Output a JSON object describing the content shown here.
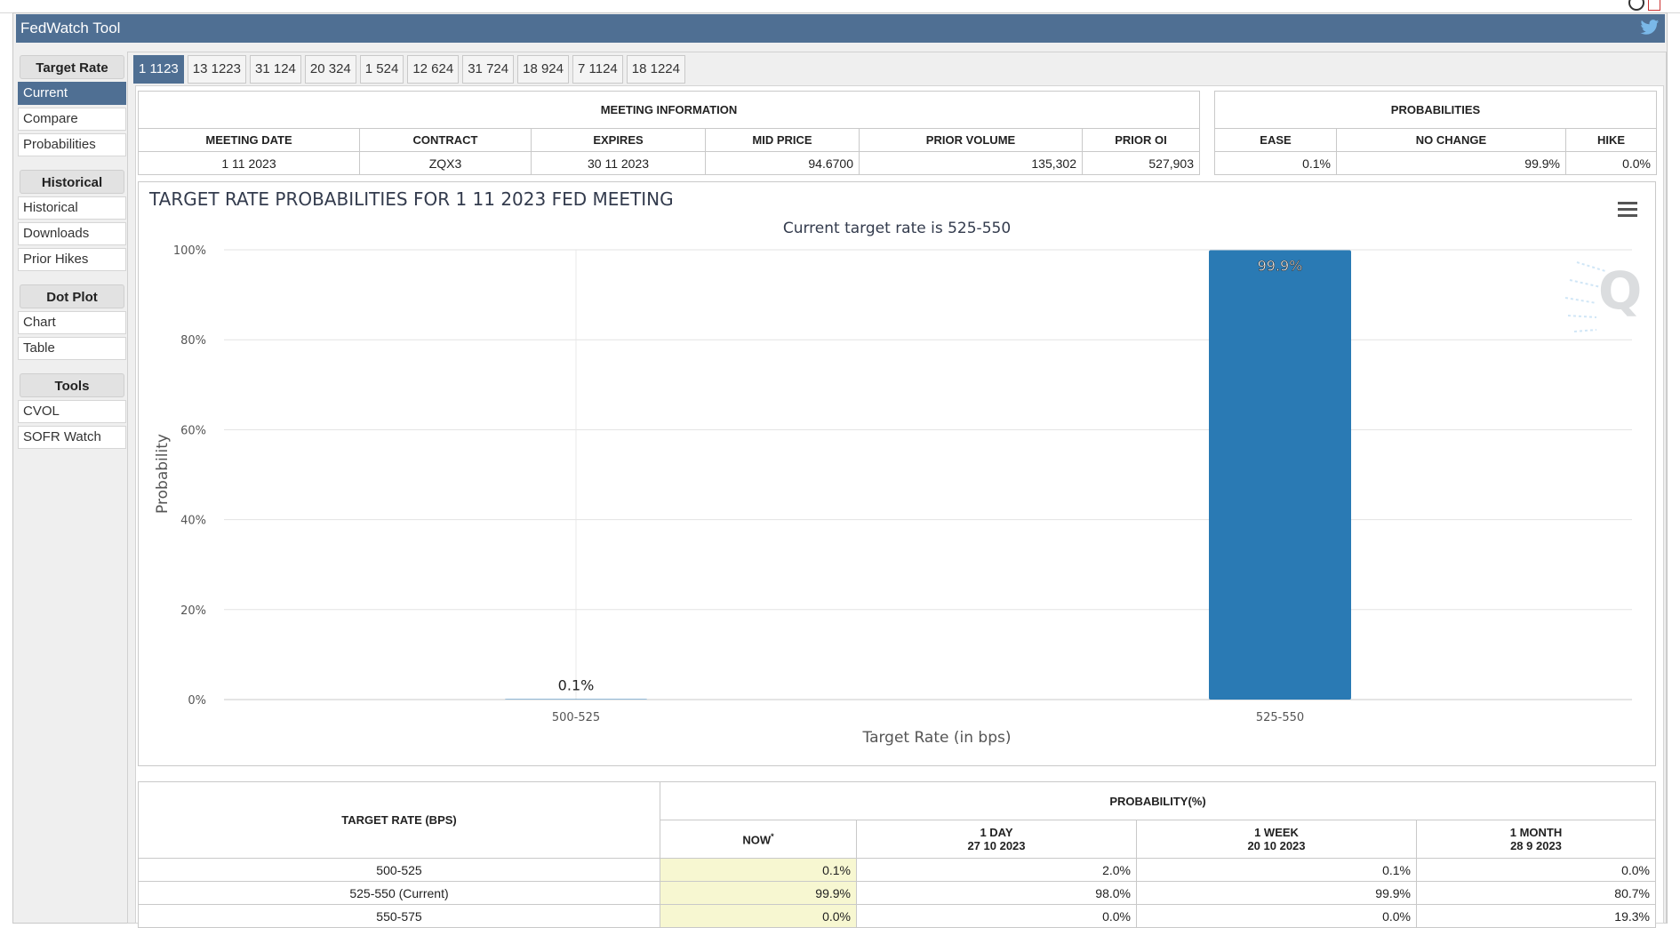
{
  "app": {
    "title": "FedWatch Tool"
  },
  "sidebar": {
    "groups": [
      {
        "heading": "Target Rate",
        "items": [
          "Current",
          "Compare",
          "Probabilities"
        ]
      },
      {
        "heading": "Historical",
        "items": [
          "Historical",
          "Downloads",
          "Prior Hikes"
        ]
      },
      {
        "heading": "Dot Plot",
        "items": [
          "Chart",
          "Table"
        ]
      },
      {
        "heading": "Tools",
        "items": [
          "CVOL",
          "SOFR Watch"
        ]
      }
    ],
    "active_item": "Current"
  },
  "tabs": [
    "1 1123",
    "13 1223",
    "31 124",
    "20 324",
    "1 524",
    "12 624",
    "31 724",
    "18 924",
    "7 1124",
    "18 1224"
  ],
  "active_tab": 0,
  "meeting_info": {
    "title": "MEETING INFORMATION",
    "headers": [
      "MEETING DATE",
      "CONTRACT",
      "EXPIRES",
      "MID PRICE",
      "PRIOR VOLUME",
      "PRIOR OI"
    ],
    "row": [
      "1 11 2023",
      "ZQX3",
      "30 11 2023",
      "94.6700",
      "135,302",
      "527,903"
    ]
  },
  "probabilities": {
    "title": "PROBABILITIES",
    "headers": [
      "EASE",
      "NO CHANGE",
      "HIKE"
    ],
    "row": [
      "0.1%",
      "99.9%",
      "0.0%"
    ]
  },
  "chart_data": {
    "type": "bar",
    "title": "TARGET RATE PROBABILITIES FOR 1 11 2023 FED MEETING",
    "subtitle": "Current target rate is 525-550",
    "xlabel": "Target Rate (in bps)",
    "ylabel": "Probability",
    "categories": [
      "500-525",
      "525-550"
    ],
    "values": [
      0.1,
      99.9
    ],
    "data_labels": [
      "0.1%",
      "99.9%"
    ],
    "yticks": [
      "0%",
      "20%",
      "40%",
      "60%",
      "80%",
      "100%"
    ],
    "ylim": [
      0,
      100
    ],
    "bar_color": "#2a7ab4",
    "grid": true
  },
  "prob_table": {
    "rate_header": "TARGET RATE (BPS)",
    "prob_header": "PROBABILITY(%)",
    "cols": [
      {
        "label": "NOW",
        "sup": "*",
        "date": ""
      },
      {
        "label": "1 DAY",
        "date": "27 10 2023"
      },
      {
        "label": "1 WEEK",
        "date": "20 10 2023"
      },
      {
        "label": "1 MONTH",
        "date": "28 9 2023"
      }
    ],
    "rows": [
      {
        "rate": "500-525",
        "values": [
          "0.1%",
          "2.0%",
          "0.1%",
          "0.0%"
        ]
      },
      {
        "rate": "525-550 (Current)",
        "values": [
          "99.9%",
          "98.0%",
          "99.9%",
          "80.7%"
        ]
      },
      {
        "rate": "550-575",
        "values": [
          "0.0%",
          "0.0%",
          "0.0%",
          "19.3%"
        ]
      }
    ]
  },
  "colors": {
    "accent": "#4f6f93",
    "bar": "#2a7ab4",
    "highlight": "#f7f7d1"
  }
}
